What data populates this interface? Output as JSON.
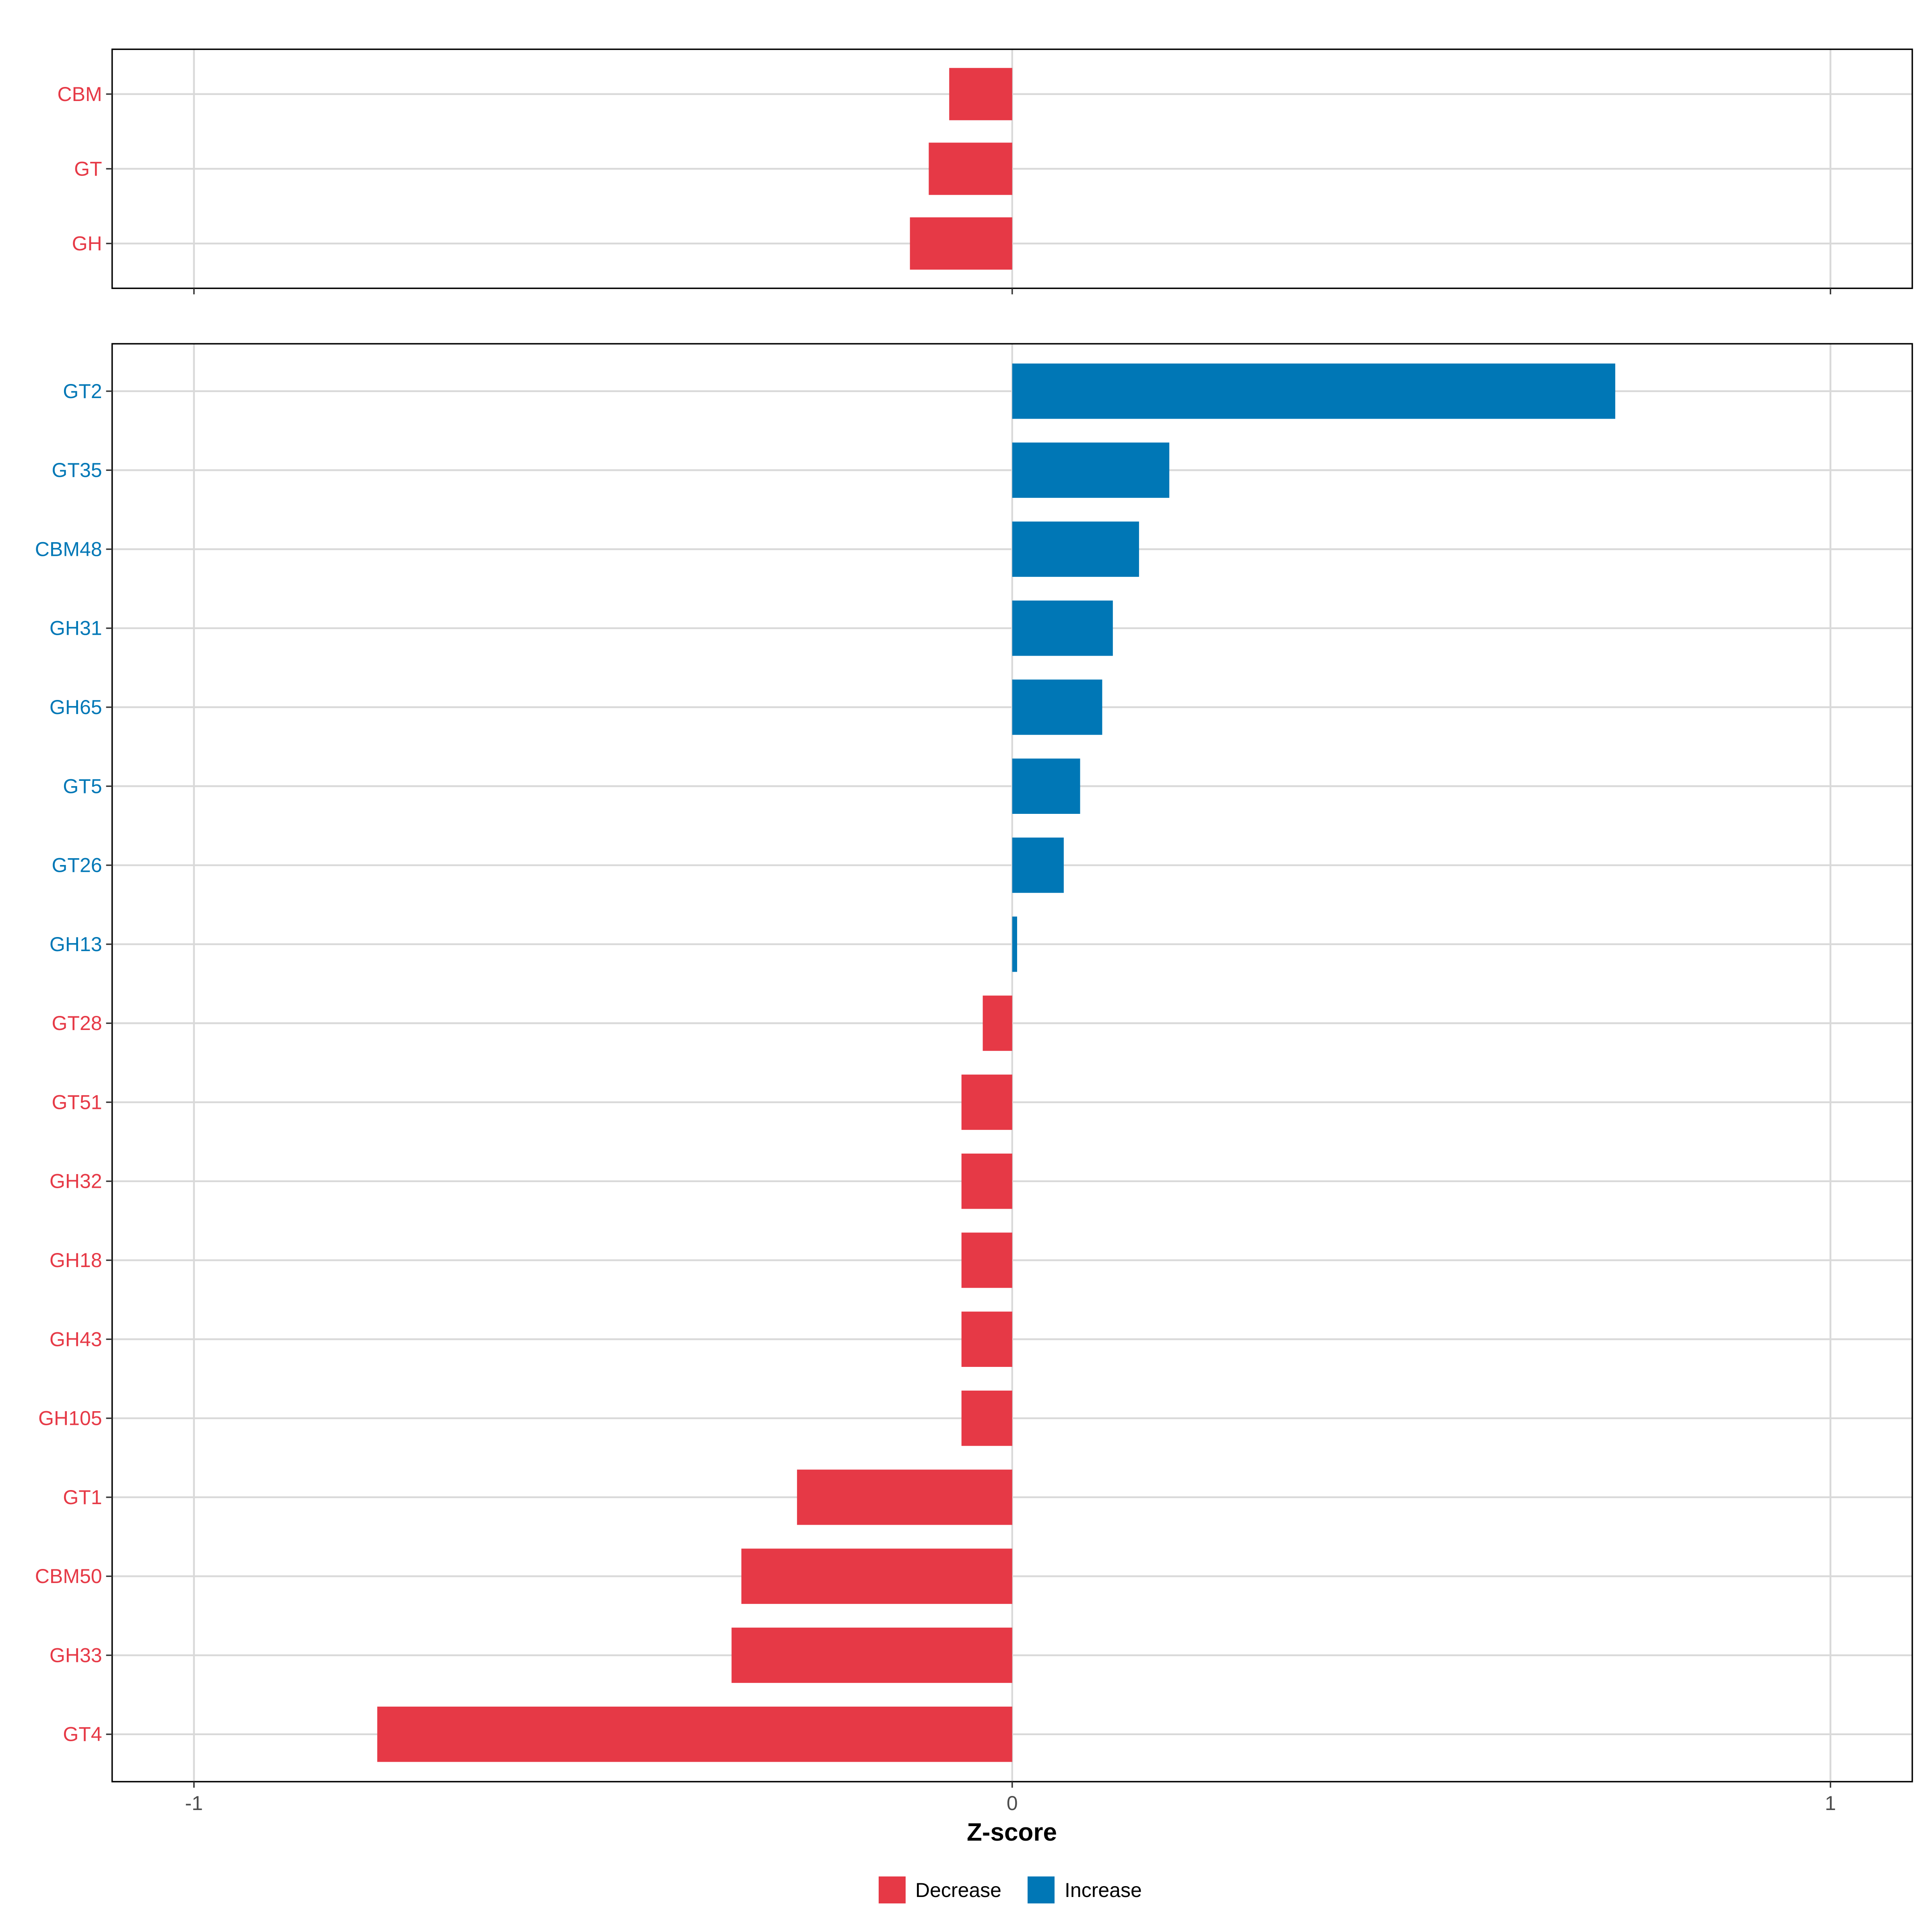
{
  "chart_data": {
    "type": "bar",
    "xlabel": "Z-score",
    "xlim": [
      -1.1,
      1.1
    ],
    "xticks": [
      -1,
      0,
      1
    ],
    "xtick_labels": [
      "-1",
      "0",
      "1"
    ],
    "legend": {
      "entries": [
        {
          "label": "Decrease",
          "color": "#E63946"
        },
        {
          "label": "Increase",
          "color": "#0077B6"
        }
      ]
    },
    "panels": [
      {
        "categories": [
          "CBM",
          "GT",
          "GH"
        ],
        "values": [
          -0.077,
          -0.102,
          -0.125
        ]
      },
      {
        "categories": [
          "GT2",
          "GT35",
          "CBM48",
          "GH31",
          "GH65",
          "GT5",
          "GT26",
          "GH13",
          "GT28",
          "GT51",
          "GH32",
          "GH18",
          "GH43",
          "GH105",
          "GT1",
          "CBM50",
          "GH33",
          "GT4"
        ],
        "values": [
          0.737,
          0.192,
          0.155,
          0.123,
          0.11,
          0.083,
          0.063,
          0.006,
          -0.036,
          -0.062,
          -0.062,
          -0.062,
          -0.062,
          -0.062,
          -0.263,
          -0.331,
          -0.343,
          -0.776
        ]
      }
    ]
  }
}
